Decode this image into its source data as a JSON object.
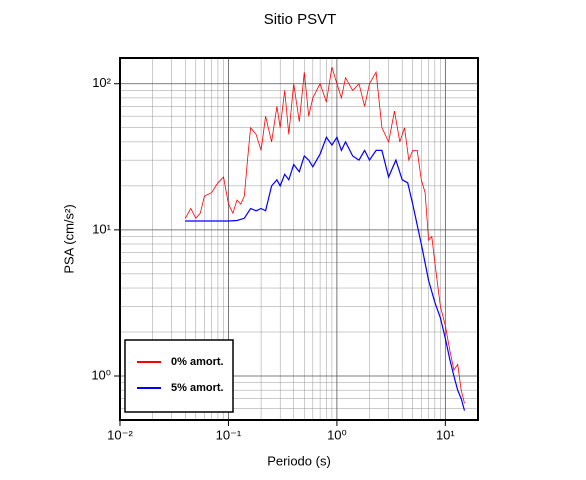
{
  "chart_data": {
    "type": "line",
    "title": "Sitio PSVT",
    "xlabel": "Periodo (s)",
    "ylabel": "PSA (cm/s²)",
    "xscale": "log",
    "yscale": "log",
    "grid": true,
    "legend": "lower left",
    "xlim": [
      0.01,
      20
    ],
    "ylim": [
      0.5,
      150
    ],
    "xticks": [
      {
        "value": 0.01,
        "label": "10⁻²"
      },
      {
        "value": 0.1,
        "label": "10⁻¹"
      },
      {
        "value": 1,
        "label": "10⁰"
      },
      {
        "value": 10,
        "label": "10¹"
      }
    ],
    "yticks": [
      {
        "value": 1,
        "label": "10⁰"
      },
      {
        "value": 10,
        "label": "10¹"
      },
      {
        "value": 100,
        "label": "10²"
      }
    ],
    "series": [
      {
        "name": "0% amort.",
        "color": "#ff0000",
        "x": [
          0.04,
          0.045,
          0.05,
          0.055,
          0.06,
          0.07,
          0.08,
          0.09,
          0.1,
          0.11,
          0.12,
          0.13,
          0.14,
          0.15,
          0.16,
          0.18,
          0.2,
          0.22,
          0.25,
          0.28,
          0.3,
          0.33,
          0.36,
          0.4,
          0.45,
          0.5,
          0.55,
          0.6,
          0.7,
          0.8,
          0.9,
          1.0,
          1.1,
          1.2,
          1.4,
          1.6,
          1.8,
          2.0,
          2.3,
          2.6,
          3.0,
          3.4,
          3.8,
          4.2,
          4.6,
          5.0,
          5.5,
          6.0,
          6.5,
          7.0,
          7.5,
          8.0,
          9.0,
          10,
          11,
          12,
          13,
          14,
          15
        ],
        "values": [
          12,
          14,
          12,
          13,
          17,
          18,
          21,
          23,
          15,
          13,
          16,
          15,
          17,
          30,
          50,
          45,
          35,
          60,
          40,
          70,
          50,
          90,
          45,
          100,
          55,
          120,
          60,
          80,
          100,
          75,
          130,
          100,
          80,
          110,
          90,
          100,
          70,
          100,
          120,
          50,
          40,
          65,
          40,
          50,
          30,
          35,
          35,
          22,
          18,
          8.5,
          9,
          6,
          3,
          2.2,
          1.5,
          1.1,
          1.2,
          0.8,
          0.65
        ]
      },
      {
        "name": "5% amort.",
        "color": "#0000ff",
        "x": [
          0.04,
          0.06,
          0.1,
          0.12,
          0.14,
          0.16,
          0.18,
          0.2,
          0.22,
          0.25,
          0.28,
          0.3,
          0.33,
          0.36,
          0.4,
          0.45,
          0.5,
          0.55,
          0.6,
          0.7,
          0.8,
          0.9,
          1.0,
          1.1,
          1.2,
          1.4,
          1.6,
          1.8,
          2.0,
          2.3,
          2.6,
          3.0,
          3.5,
          4.0,
          4.5,
          5.0,
          6.0,
          7.0,
          8.0,
          9.0,
          10,
          11,
          12,
          13,
          14,
          15
        ],
        "values": [
          11.5,
          11.5,
          11.5,
          11.6,
          12,
          14,
          13.5,
          14,
          13.5,
          20,
          22,
          20,
          24,
          22,
          28,
          25,
          32,
          30,
          27,
          33,
          43,
          38,
          43,
          35,
          40,
          32,
          30,
          35,
          30,
          35,
          35,
          23,
          30,
          22,
          21,
          15,
          8,
          4.5,
          3.2,
          2.5,
          1.8,
          1.3,
          1.0,
          0.8,
          0.7,
          0.58
        ]
      }
    ]
  }
}
